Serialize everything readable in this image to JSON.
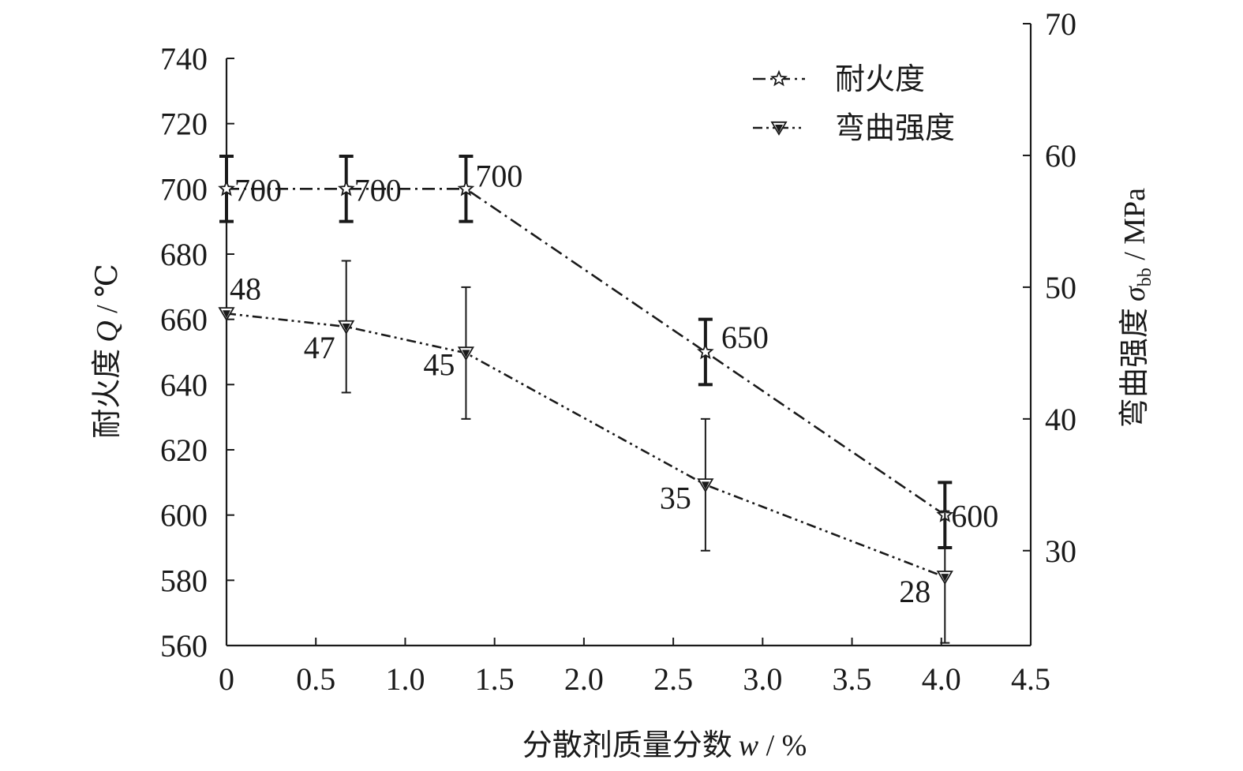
{
  "chart_data": {
    "type": "line",
    "xlabel": "分散剂质量分数",
    "xlabel_var": "w",
    "xlabel_unit": " / %",
    "ylabel": "耐火度",
    "ylabel_var": "Q",
    "ylabel_unit": " / ℃",
    "y2label": "弯曲强度",
    "y2label_var": "σ",
    "y2label_sub": "bb",
    "y2label_unit": " / MPa",
    "xlim": [
      0,
      4.5
    ],
    "ylim": [
      560,
      740
    ],
    "y2lim": [
      22.8,
      70
    ],
    "x_ticks": [
      "0",
      "0.5",
      "1.0",
      "1.5",
      "2.0",
      "2.5",
      "3.0",
      "3.5",
      "4.0",
      "4.5"
    ],
    "x_tick_values": [
      0,
      0.5,
      1.0,
      1.5,
      2.0,
      2.5,
      3.0,
      3.5,
      4.0,
      4.5
    ],
    "y_ticks": [
      "560",
      "580",
      "600",
      "620",
      "640",
      "660",
      "680",
      "700",
      "720",
      "740"
    ],
    "y_tick_values": [
      560,
      580,
      600,
      620,
      640,
      660,
      680,
      700,
      720,
      740
    ],
    "y2_ticks": [
      "30",
      "40",
      "50",
      "60",
      "70"
    ],
    "y2_tick_values": [
      30,
      40,
      50,
      60,
      70
    ],
    "legend_position": "top-right",
    "series": [
      {
        "name": "耐火度",
        "axis": "left",
        "marker": "star",
        "x": [
          0,
          0.67,
          1.34,
          2.68,
          4.02
        ],
        "y": [
          700,
          700,
          700,
          650,
          600
        ],
        "error": [
          10,
          10,
          10,
          10,
          10
        ],
        "labels": [
          "700",
          "700",
          "700",
          "650",
          "600"
        ]
      },
      {
        "name": "弯曲强度",
        "axis": "right",
        "marker": "down-triangle",
        "x": [
          0,
          0.67,
          1.34,
          2.68,
          4.02
        ],
        "y": [
          48,
          47,
          45,
          35,
          28
        ],
        "error": [
          0,
          5,
          5,
          5,
          5
        ],
        "labels": [
          "48",
          "47",
          "45",
          "35",
          "28"
        ]
      }
    ]
  }
}
